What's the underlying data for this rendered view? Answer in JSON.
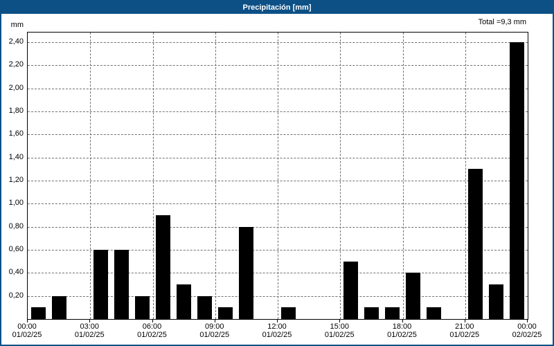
{
  "header": {
    "title": "Precipitación [mm]"
  },
  "chart": {
    "total_label": "Total =9,3 mm",
    "unit_label": "mm"
  },
  "colors": {
    "header_bg": "#0d5086",
    "frame_border": "#0d5086",
    "bar": "#000000",
    "grid": "#707070",
    "plot_bg": "#ffffff"
  },
  "chart_data": {
    "type": "bar",
    "title": "Precipitación [mm]",
    "xlabel": "",
    "ylabel": "mm",
    "ylim": [
      0,
      2.4
    ],
    "ytick_step": 0.2,
    "ytick_labels": [
      "0,20",
      "0,40",
      "0,60",
      "0,80",
      "1,00",
      "1,20",
      "1,40",
      "1,60",
      "1,80",
      "2,00",
      "2,20",
      "2,40"
    ],
    "grid": "dashed",
    "legend_position": "none",
    "total": "9,3 mm",
    "categories": [
      "00:00",
      "01:00",
      "02:00",
      "03:00",
      "04:00",
      "05:00",
      "06:00",
      "07:00",
      "08:00",
      "09:00",
      "10:00",
      "11:00",
      "12:00",
      "13:00",
      "14:00",
      "15:00",
      "16:00",
      "17:00",
      "18:00",
      "19:00",
      "20:00",
      "21:00",
      "22:00",
      "23:00"
    ],
    "values": [
      0.1,
      0.2,
      0,
      0.6,
      0.6,
      0.2,
      0.9,
      0.3,
      0.2,
      0.1,
      0.8,
      0,
      0.1,
      0,
      0,
      0.5,
      0.1,
      0.1,
      0.4,
      0.1,
      0,
      1.3,
      0.3,
      2.4
    ],
    "xticks": [
      {
        "pos": 0,
        "time": "00:00",
        "date": "01/02/25"
      },
      {
        "pos": 3,
        "time": "03:00",
        "date": "01/02/25"
      },
      {
        "pos": 6,
        "time": "06:00",
        "date": "01/02/25"
      },
      {
        "pos": 9,
        "time": "09:00",
        "date": "01/02/25"
      },
      {
        "pos": 12,
        "time": "12:00",
        "date": "01/02/25"
      },
      {
        "pos": 15,
        "time": "15:00",
        "date": "01/02/25"
      },
      {
        "pos": 18,
        "time": "18:00",
        "date": "01/02/25"
      },
      {
        "pos": 21,
        "time": "21:00",
        "date": "01/02/25"
      },
      {
        "pos": 24,
        "time": "00:00",
        "date": "02/02/25"
      }
    ]
  }
}
